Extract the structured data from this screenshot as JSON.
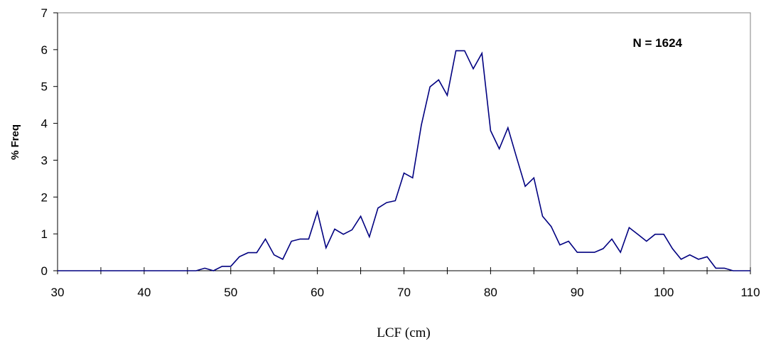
{
  "chart_data": {
    "type": "line",
    "title": "",
    "xlabel": "LCF (cm)",
    "ylabel": "% Freq",
    "annotation": "N = 1624",
    "xlim": [
      30,
      110
    ],
    "ylim": [
      0,
      7
    ],
    "xticks": [
      30,
      40,
      50,
      60,
      70,
      80,
      90,
      100,
      110
    ],
    "yticks": [
      0,
      1,
      2,
      3,
      4,
      5,
      6,
      7
    ],
    "grid": false,
    "legend": "none",
    "line_color": "#000080",
    "x": [
      30,
      31,
      32,
      33,
      34,
      35,
      36,
      37,
      38,
      39,
      40,
      41,
      42,
      43,
      44,
      45,
      46,
      47,
      48,
      49,
      50,
      51,
      52,
      53,
      54,
      55,
      56,
      57,
      58,
      59,
      60,
      61,
      62,
      63,
      64,
      65,
      66,
      67,
      68,
      69,
      70,
      71,
      72,
      73,
      74,
      75,
      76,
      77,
      78,
      79,
      80,
      81,
      82,
      83,
      84,
      85,
      86,
      87,
      88,
      89,
      90,
      91,
      92,
      93,
      94,
      95,
      96,
      97,
      98,
      99,
      100,
      101,
      102,
      103,
      104,
      105,
      106,
      107,
      108,
      109,
      110
    ],
    "y": [
      0,
      0,
      0,
      0,
      0,
      0,
      0,
      0,
      0,
      0,
      0,
      0,
      0,
      0,
      0,
      0,
      0,
      0.07,
      0,
      0.12,
      0.12,
      0.38,
      0.49,
      0.49,
      0.86,
      0.43,
      0.31,
      0.8,
      0.86,
      0.86,
      1.6,
      0.62,
      1.13,
      0.99,
      1.11,
      1.48,
      0.92,
      1.7,
      1.85,
      1.9,
      2.65,
      2.52,
      3.95,
      4.99,
      5.18,
      4.76,
      5.97,
      5.97,
      5.48,
      5.9,
      3.8,
      3.31,
      3.88,
      3.08,
      2.29,
      2.52,
      1.48,
      1.2,
      0.7,
      0.8,
      0.5,
      0.5,
      0.5,
      0.6,
      0.86,
      0.5,
      1.17,
      0.99,
      0.8,
      0.99,
      0.99,
      0.6,
      0.31,
      0.43,
      0.31,
      0.38,
      0.07,
      0.07,
      0,
      0,
      0
    ]
  }
}
